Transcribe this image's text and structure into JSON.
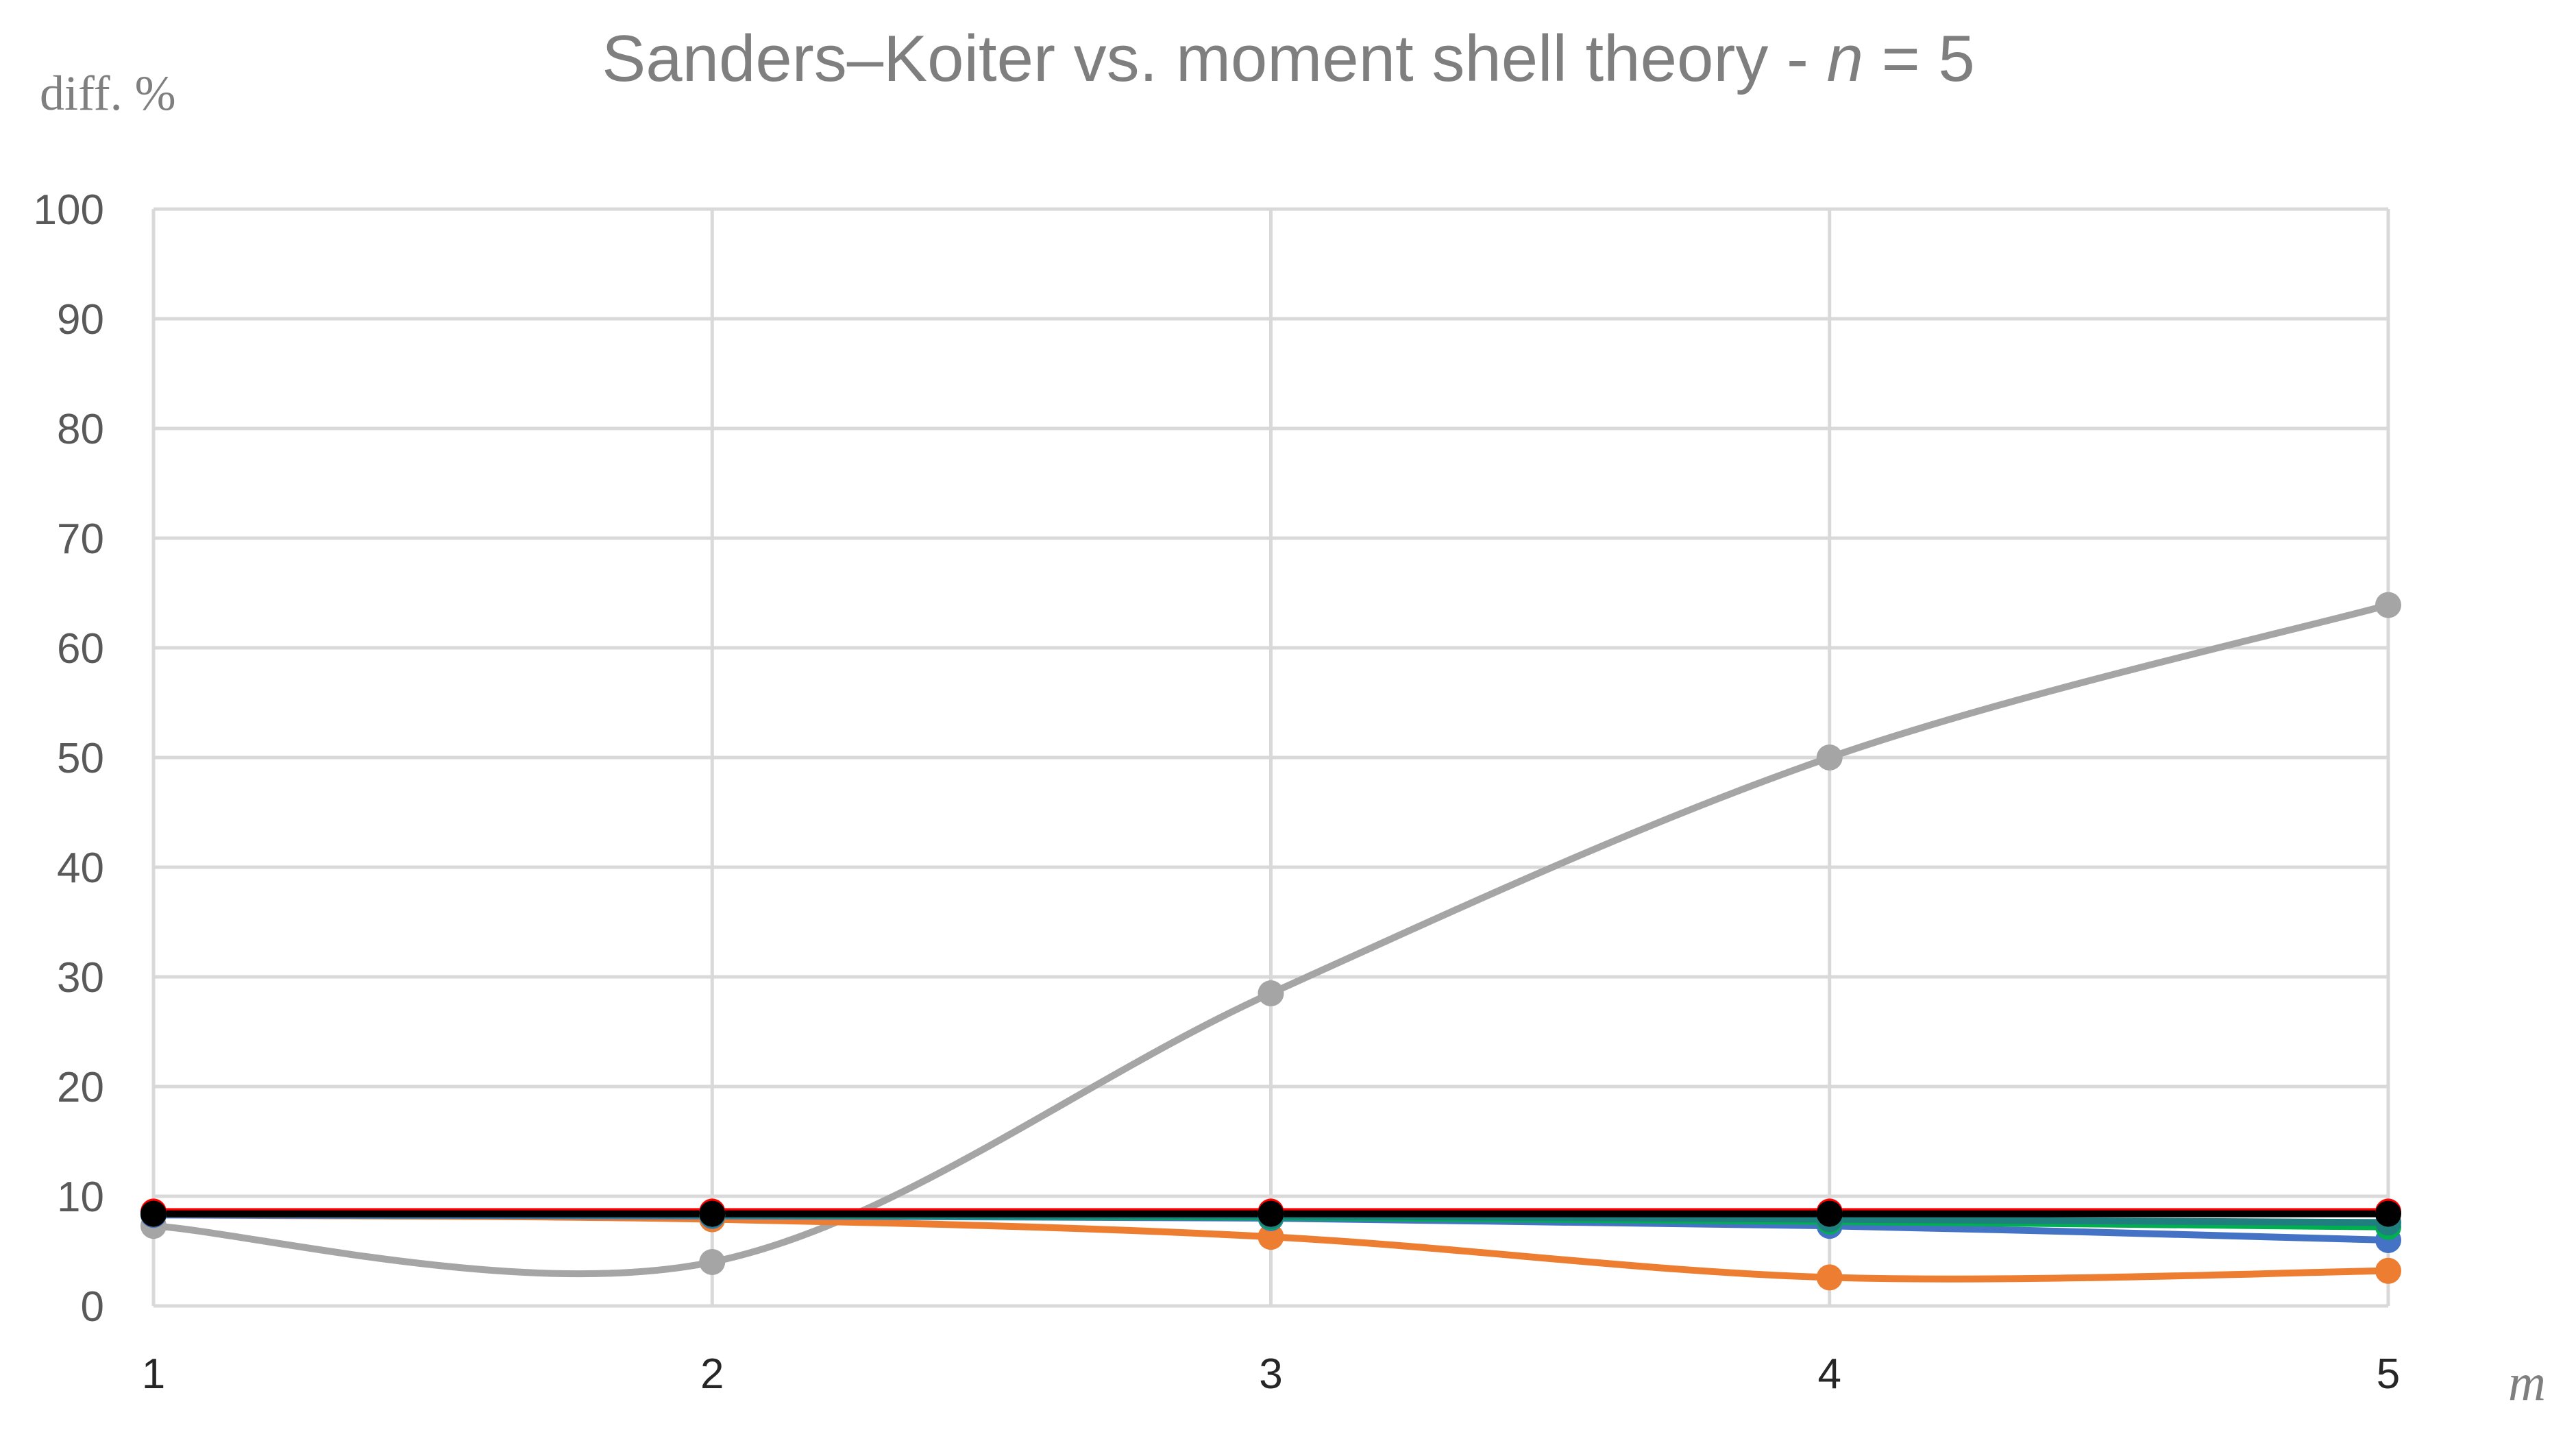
{
  "chart_data": {
    "type": "line",
    "title_main": "Sanders–Koiter vs. moment shell theory - ",
    "title_var": "n",
    "title_tail": " = 5",
    "ylabel": "diff. %",
    "xlabel": "m",
    "x": [
      1,
      2,
      3,
      4,
      5
    ],
    "xlim": [
      1,
      5
    ],
    "ylim": [
      0,
      100
    ],
    "yticks": [
      0,
      10,
      20,
      30,
      40,
      50,
      60,
      70,
      80,
      90,
      100
    ],
    "grid": true,
    "smooth": true,
    "series": [
      {
        "color": "#a5a5a5",
        "values": [
          7.3,
          4.0,
          28.5,
          50.0,
          63.9
        ]
      },
      {
        "color": "#ed7d31",
        "values": [
          8.3,
          7.9,
          6.3,
          2.6,
          3.2
        ]
      },
      {
        "color": "#4472c4",
        "values": [
          8.3,
          8.2,
          8.0,
          7.3,
          6.0
        ]
      },
      {
        "color": "#00b050",
        "values": [
          8.4,
          8.3,
          8.1,
          7.7,
          7.2
        ]
      },
      {
        "color": "#1f7f7f",
        "values": [
          8.4,
          8.3,
          8.2,
          7.9,
          7.6
        ]
      },
      {
        "color": "#ff0000",
        "values": [
          8.6,
          8.6,
          8.6,
          8.6,
          8.6
        ]
      },
      {
        "color": "#000000",
        "values": [
          8.4,
          8.4,
          8.4,
          8.4,
          8.4
        ]
      }
    ]
  }
}
